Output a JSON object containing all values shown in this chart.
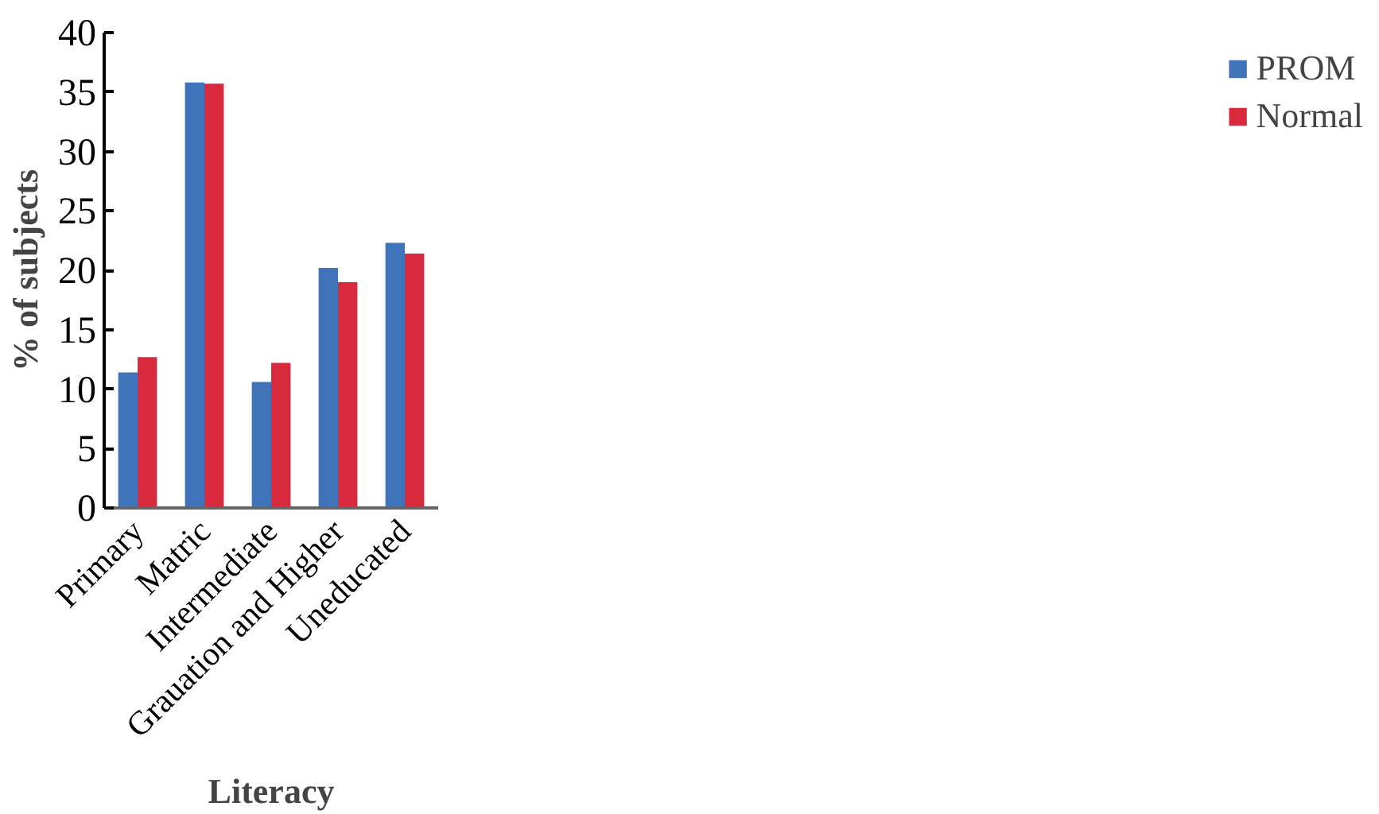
{
  "chart_data": {
    "type": "bar",
    "xlabel": "Literacy",
    "ylabel": "% of subjects",
    "categories": [
      "Primary",
      "Matric",
      "Intermediate",
      "Grauation and Higher",
      "Uneducated"
    ],
    "series": [
      {
        "name": "PROM",
        "color": "#3f74ba",
        "values": [
          11.4,
          35.8,
          10.6,
          20.2,
          22.3
        ]
      },
      {
        "name": "Normal",
        "color": "#d9293d",
        "values": [
          12.7,
          35.7,
          12.2,
          19.0,
          21.4
        ]
      }
    ],
    "ylim": [
      0,
      40
    ],
    "yticks": [
      0,
      5,
      10,
      15,
      20,
      25,
      30,
      35,
      40
    ],
    "grid": false,
    "legend": "right"
  }
}
